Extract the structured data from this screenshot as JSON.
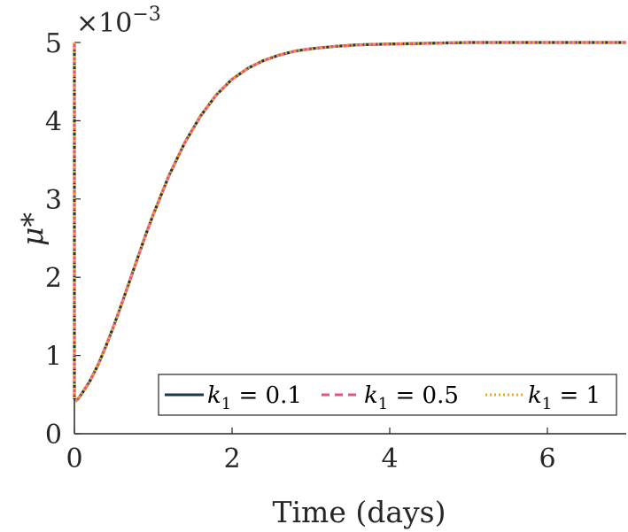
{
  "chart_data": {
    "type": "line",
    "xlabel": "Time (days)",
    "ylabel": "μ*",
    "y_exponent_label": "×10",
    "y_exponent_power": "−3",
    "xlim": [
      0,
      7
    ],
    "ylim": [
      0,
      5
    ],
    "x_ticks": [
      "0",
      "2",
      "4",
      "6"
    ],
    "y_ticks": [
      "0",
      "1",
      "2",
      "3",
      "4",
      "5"
    ],
    "grid": false,
    "legend_position": "bottom-right",
    "series": [
      {
        "name": "k1 = 0.1",
        "legend_parts": [
          "k",
          "1",
          " = 0.1"
        ],
        "color": "#1a3a4a",
        "style": "solid",
        "x": [
          0,
          0.0,
          0.02,
          0.05,
          0.1,
          0.2,
          0.3,
          0.4,
          0.5,
          0.6,
          0.7,
          0.8,
          0.9,
          1.0,
          1.2,
          1.4,
          1.6,
          1.8,
          2.0,
          2.2,
          2.4,
          2.6,
          2.8,
          3.0,
          3.3,
          3.6,
          4.0,
          4.5,
          5.0,
          5.5,
          6.0,
          6.5,
          7.0
        ],
        "y": [
          5.0,
          0.45,
          0.42,
          0.45,
          0.52,
          0.68,
          0.88,
          1.12,
          1.38,
          1.66,
          1.95,
          2.24,
          2.53,
          2.8,
          3.3,
          3.72,
          4.06,
          4.33,
          4.53,
          4.67,
          4.77,
          4.84,
          4.89,
          4.92,
          4.95,
          4.97,
          4.98,
          4.99,
          5.0,
          5.0,
          5.0,
          5.0,
          5.0
        ]
      },
      {
        "name": "k1 = 0.5",
        "legend_parts": [
          "k",
          "1",
          " = 0.5"
        ],
        "color": "#e8508a",
        "style": "dashed",
        "x": [
          0,
          0.0,
          0.02,
          0.05,
          0.1,
          0.2,
          0.3,
          0.4,
          0.5,
          0.6,
          0.7,
          0.8,
          0.9,
          1.0,
          1.2,
          1.4,
          1.6,
          1.8,
          2.0,
          2.2,
          2.4,
          2.6,
          2.8,
          3.0,
          3.3,
          3.6,
          4.0,
          4.5,
          5.0,
          5.5,
          6.0,
          6.5,
          7.0
        ],
        "y": [
          5.0,
          0.45,
          0.42,
          0.45,
          0.52,
          0.68,
          0.88,
          1.12,
          1.38,
          1.66,
          1.95,
          2.24,
          2.53,
          2.8,
          3.3,
          3.72,
          4.06,
          4.33,
          4.53,
          4.67,
          4.77,
          4.84,
          4.89,
          4.92,
          4.95,
          4.97,
          4.98,
          4.99,
          5.0,
          5.0,
          5.0,
          5.0,
          5.0
        ]
      },
      {
        "name": "k1 = 1",
        "legend_parts": [
          "k",
          "1",
          " = 1"
        ],
        "color": "#f2a81d",
        "style": "dotted",
        "x": [
          0,
          0.0,
          0.02,
          0.05,
          0.1,
          0.2,
          0.3,
          0.4,
          0.5,
          0.6,
          0.7,
          0.8,
          0.9,
          1.0,
          1.2,
          1.4,
          1.6,
          1.8,
          2.0,
          2.2,
          2.4,
          2.6,
          2.8,
          3.0,
          3.3,
          3.6,
          4.0,
          4.5,
          5.0,
          5.5,
          6.0,
          6.5,
          7.0
        ],
        "y": [
          5.0,
          0.45,
          0.42,
          0.45,
          0.52,
          0.68,
          0.88,
          1.12,
          1.38,
          1.66,
          1.95,
          2.24,
          2.53,
          2.8,
          3.3,
          3.72,
          4.06,
          4.33,
          4.53,
          4.67,
          4.77,
          4.84,
          4.89,
          4.92,
          4.95,
          4.97,
          4.98,
          4.99,
          5.0,
          5.0,
          5.0,
          5.0,
          5.0
        ]
      }
    ]
  }
}
